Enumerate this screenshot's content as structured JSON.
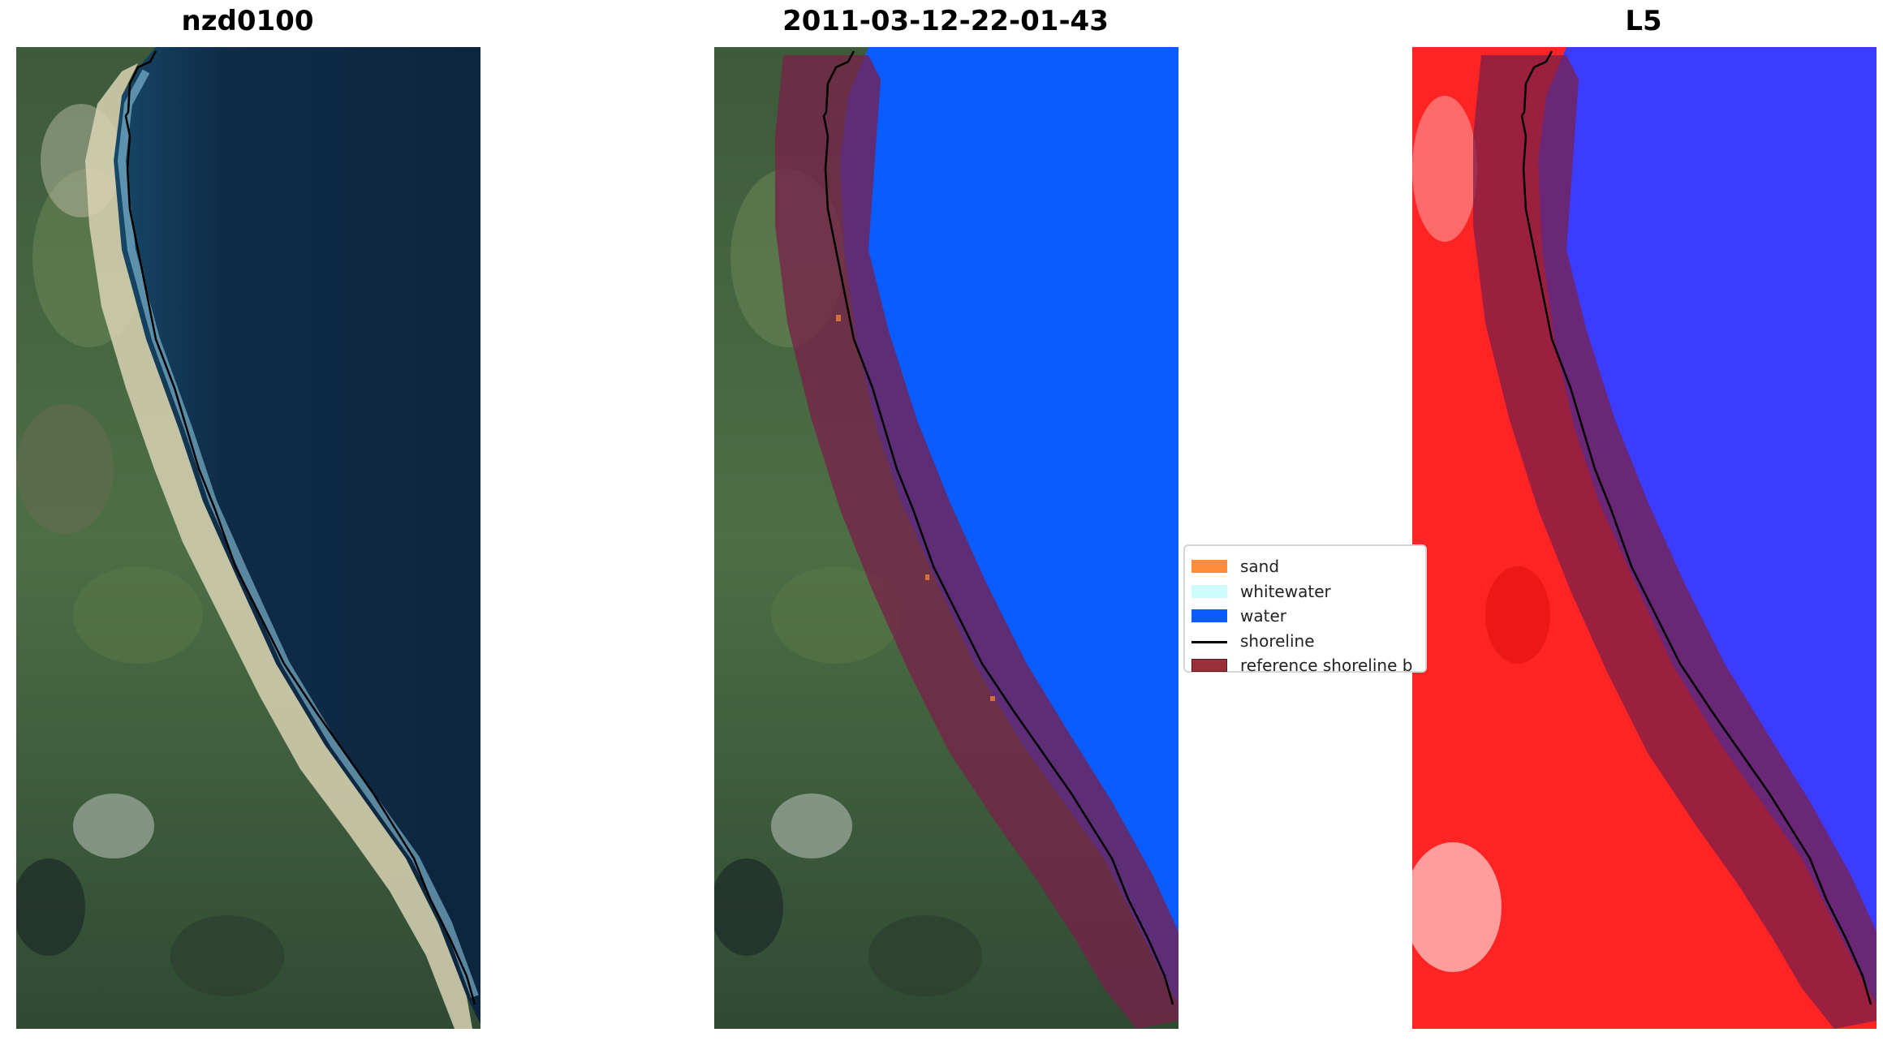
{
  "panels": [
    {
      "title": "nzd0100"
    },
    {
      "title": "2011-03-12-22-01-43"
    },
    {
      "title": "L5"
    }
  ],
  "legend": {
    "items": [
      {
        "label": "sand",
        "color": "#ff8c3a",
        "kind": "patch"
      },
      {
        "label": "whitewater",
        "color": "#ccfcfc",
        "kind": "patch"
      },
      {
        "label": "water",
        "color": "#0a5cff",
        "kind": "patch"
      },
      {
        "label": "shoreline",
        "color": "#000000",
        "kind": "line"
      },
      {
        "label": "reference shoreline b",
        "color": "#9b2f37",
        "kind": "patch"
      }
    ]
  },
  "colors": {
    "ocean": "#0f2b45",
    "vegetation": "#4a6b3f",
    "water_class": "#0a5cff",
    "reference_buffer": "#7a1f4a",
    "land_index": "#ff2424",
    "water_index": "#3c3cff"
  }
}
